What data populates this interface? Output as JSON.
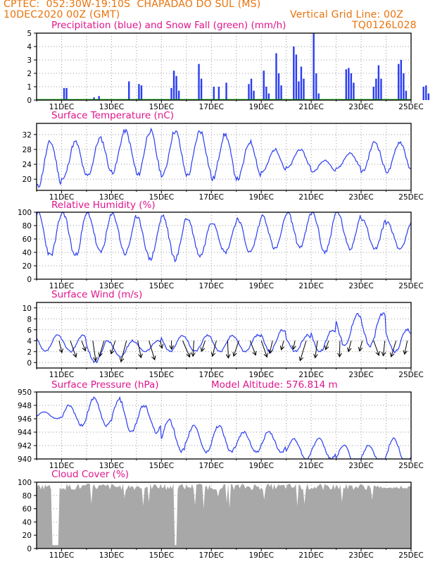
{
  "header": {
    "line1_left": "CPTEC:  052:30W-19:10S  CHAPADAO DO SUL (MS)",
    "line2_left": "10DEC2020 00Z (GMT)",
    "line2_right": "Vertical Grid Line: 00Z",
    "line3_right": "TQ0126L028"
  },
  "colors": {
    "header_text": "#e8730c",
    "panel_title": "#e0158c",
    "precip_bar": "#2b3df0",
    "snow_line": "#14a814",
    "series_line": "#2b3df0",
    "wind_arrow": "#000000",
    "cloud_fill": "#a8a8a8"
  },
  "chart_data": [
    {
      "type": "bar",
      "title": "Precipitation (blue) and Snow Fall (green) (mm/h)",
      "x_range": [
        "10DEC 00Z",
        "25DEC 00Z"
      ],
      "x_ticks": [
        "11DEC",
        "13DEC",
        "15DEC",
        "17DEC",
        "19DEC",
        "21DEC",
        "23DEC",
        "25DEC"
      ],
      "ylim": [
        0,
        5
      ],
      "y_ticks": [
        0,
        1,
        2,
        3,
        4,
        5
      ],
      "grid": true,
      "series": [
        {
          "name": "Precipitation",
          "values_day_mm": [
            [
              1.1,
              0.9
            ],
            [
              1.2,
              0.9
            ],
            [
              2.3,
              0.2
            ],
            [
              2.5,
              0.3
            ],
            [
              3.7,
              1.4
            ],
            [
              4.1,
              1.2
            ],
            [
              4.2,
              1.1
            ],
            [
              5.4,
              0.9
            ],
            [
              5.5,
              2.2
            ],
            [
              5.6,
              1.8
            ],
            [
              5.7,
              0.7
            ],
            [
              6.5,
              2.7
            ],
            [
              6.6,
              1.6
            ],
            [
              7.1,
              1.0
            ],
            [
              7.3,
              1.0
            ],
            [
              7.6,
              1.3
            ],
            [
              8.5,
              1.2
            ],
            [
              8.6,
              1.6
            ],
            [
              8.7,
              0.7
            ],
            [
              9.1,
              2.2
            ],
            [
              9.2,
              1.0
            ],
            [
              9.3,
              0.5
            ],
            [
              9.6,
              3.5
            ],
            [
              9.7,
              2.0
            ],
            [
              9.8,
              1.1
            ],
            [
              10.3,
              4.0
            ],
            [
              10.4,
              3.4
            ],
            [
              10.5,
              1.4
            ],
            [
              10.6,
              2.5
            ],
            [
              10.7,
              1.6
            ],
            [
              11.1,
              5.0
            ],
            [
              11.2,
              2.0
            ],
            [
              11.3,
              0.5
            ],
            [
              12.4,
              2.3
            ],
            [
              12.5,
              2.4
            ],
            [
              12.6,
              2.0
            ],
            [
              12.7,
              1.3
            ],
            [
              13.5,
              1.0
            ],
            [
              13.6,
              1.6
            ],
            [
              13.7,
              2.6
            ],
            [
              13.8,
              1.6
            ],
            [
              14.5,
              2.7
            ],
            [
              14.6,
              3.0
            ],
            [
              14.7,
              2.0
            ],
            [
              14.8,
              0.7
            ],
            [
              15.5,
              1.0
            ],
            [
              15.6,
              1.1
            ],
            [
              15.7,
              0.5
            ]
          ]
        },
        {
          "name": "Snow Fall",
          "values": "0"
        }
      ]
    },
    {
      "type": "line",
      "title": "Surface Temperature (nC)",
      "x_ticks": [
        "11DEC",
        "13DEC",
        "15DEC",
        "17DEC",
        "19DEC",
        "21DEC",
        "23DEC",
        "25DEC"
      ],
      "ylim": [
        17,
        35
      ],
      "y_ticks": [
        20,
        24,
        28,
        32
      ],
      "grid": true,
      "series": [
        {
          "name": "Temperature",
          "min_max_by_day": [
            [
              18,
              30
            ],
            [
              20,
              30
            ],
            [
              21,
              31
            ],
            [
              22,
              33
            ],
            [
              21,
              33
            ],
            [
              21,
              33
            ],
            [
              21,
              33
            ],
            [
              20,
              32
            ],
            [
              20,
              30
            ],
            [
              22,
              28
            ],
            [
              23,
              28
            ],
            [
              22,
              25
            ],
            [
              23,
              27
            ],
            [
              22,
              30
            ],
            [
              22,
              30
            ]
          ]
        }
      ]
    },
    {
      "type": "line",
      "title": "Relative Humidity (%)",
      "x_ticks": [
        "11DEC",
        "13DEC",
        "15DEC",
        "17DEC",
        "19DEC",
        "21DEC",
        "23DEC",
        "25DEC"
      ],
      "ylim": [
        0,
        100
      ],
      "y_ticks": [
        0,
        20,
        40,
        60,
        80,
        100
      ],
      "grid": true,
      "series": [
        {
          "name": "Humidity",
          "min_max_by_day": [
            [
              35,
              100
            ],
            [
              35,
              100
            ],
            [
              40,
              98
            ],
            [
              38,
              97
            ],
            [
              30,
              90
            ],
            [
              30,
              95
            ],
            [
              35,
              90
            ],
            [
              40,
              85
            ],
            [
              40,
              90
            ],
            [
              45,
              95
            ],
            [
              48,
              100
            ],
            [
              40,
              100
            ],
            [
              45,
              100
            ],
            [
              45,
              90
            ],
            [
              45,
              85
            ]
          ]
        }
      ]
    },
    {
      "type": "line",
      "title": "Surface Wind (m/s)",
      "x_ticks": [
        "11DEC",
        "13DEC",
        "15DEC",
        "17DEC",
        "19DEC",
        "21DEC",
        "23DEC",
        "25DEC"
      ],
      "ylim": [
        -1,
        11
      ],
      "y_ticks": [
        0,
        2,
        4,
        6,
        8,
        10
      ],
      "grid": true,
      "series": [
        {
          "name": "Wind speed",
          "min_max_by_day": [
            [
              2,
              5
            ],
            [
              2,
              5
            ],
            [
              0,
              4
            ],
            [
              1,
              4
            ],
            [
              2,
              4
            ],
            [
              2,
              5
            ],
            [
              2,
              5
            ],
            [
              2,
              5
            ],
            [
              2,
              5
            ],
            [
              2,
              6
            ],
            [
              2,
              5
            ],
            [
              2,
              6
            ],
            [
              3,
              9
            ],
            [
              3,
              9
            ],
            [
              2,
              6
            ]
          ]
        }
      ],
      "arrows": "wind direction vectors"
    },
    {
      "type": "line",
      "title": "Surface Pressure (hPa)",
      "annotation": "Model Altitude: 576.814 m",
      "x_ticks": [
        "11DEC",
        "13DEC",
        "15DEC",
        "17DEC",
        "19DEC",
        "21DEC",
        "23DEC",
        "25DEC"
      ],
      "ylim": [
        940,
        950
      ],
      "y_ticks": [
        940,
        942,
        944,
        946,
        948,
        950
      ],
      "grid": true,
      "series": [
        {
          "name": "Pressure",
          "min_max_by_day": [
            [
              946,
              947
            ],
            [
              945,
              948
            ],
            [
              945,
              949
            ],
            [
              944,
              949
            ],
            [
              944,
              948
            ],
            [
              941,
              946
            ],
            [
              941,
              945
            ],
            [
              941,
              945
            ],
            [
              941,
              944
            ],
            [
              941,
              944
            ],
            [
              940,
              943
            ],
            [
              940,
              943
            ],
            [
              939,
              942
            ],
            [
              939,
              942
            ],
            [
              939,
              943
            ]
          ]
        }
      ]
    },
    {
      "type": "area",
      "title": "Cloud Cover (%)",
      "x_ticks": [
        "11DEC",
        "13DEC",
        "15DEC",
        "17DEC",
        "19DEC",
        "21DEC",
        "23DEC",
        "25DEC"
      ],
      "ylim": [
        0,
        100
      ],
      "y_ticks": [
        0,
        20,
        40,
        60,
        80,
        100
      ],
      "grid": true,
      "series": [
        {
          "name": "Cloud Cover",
          "typical": 95,
          "low": 5
        }
      ]
    }
  ]
}
